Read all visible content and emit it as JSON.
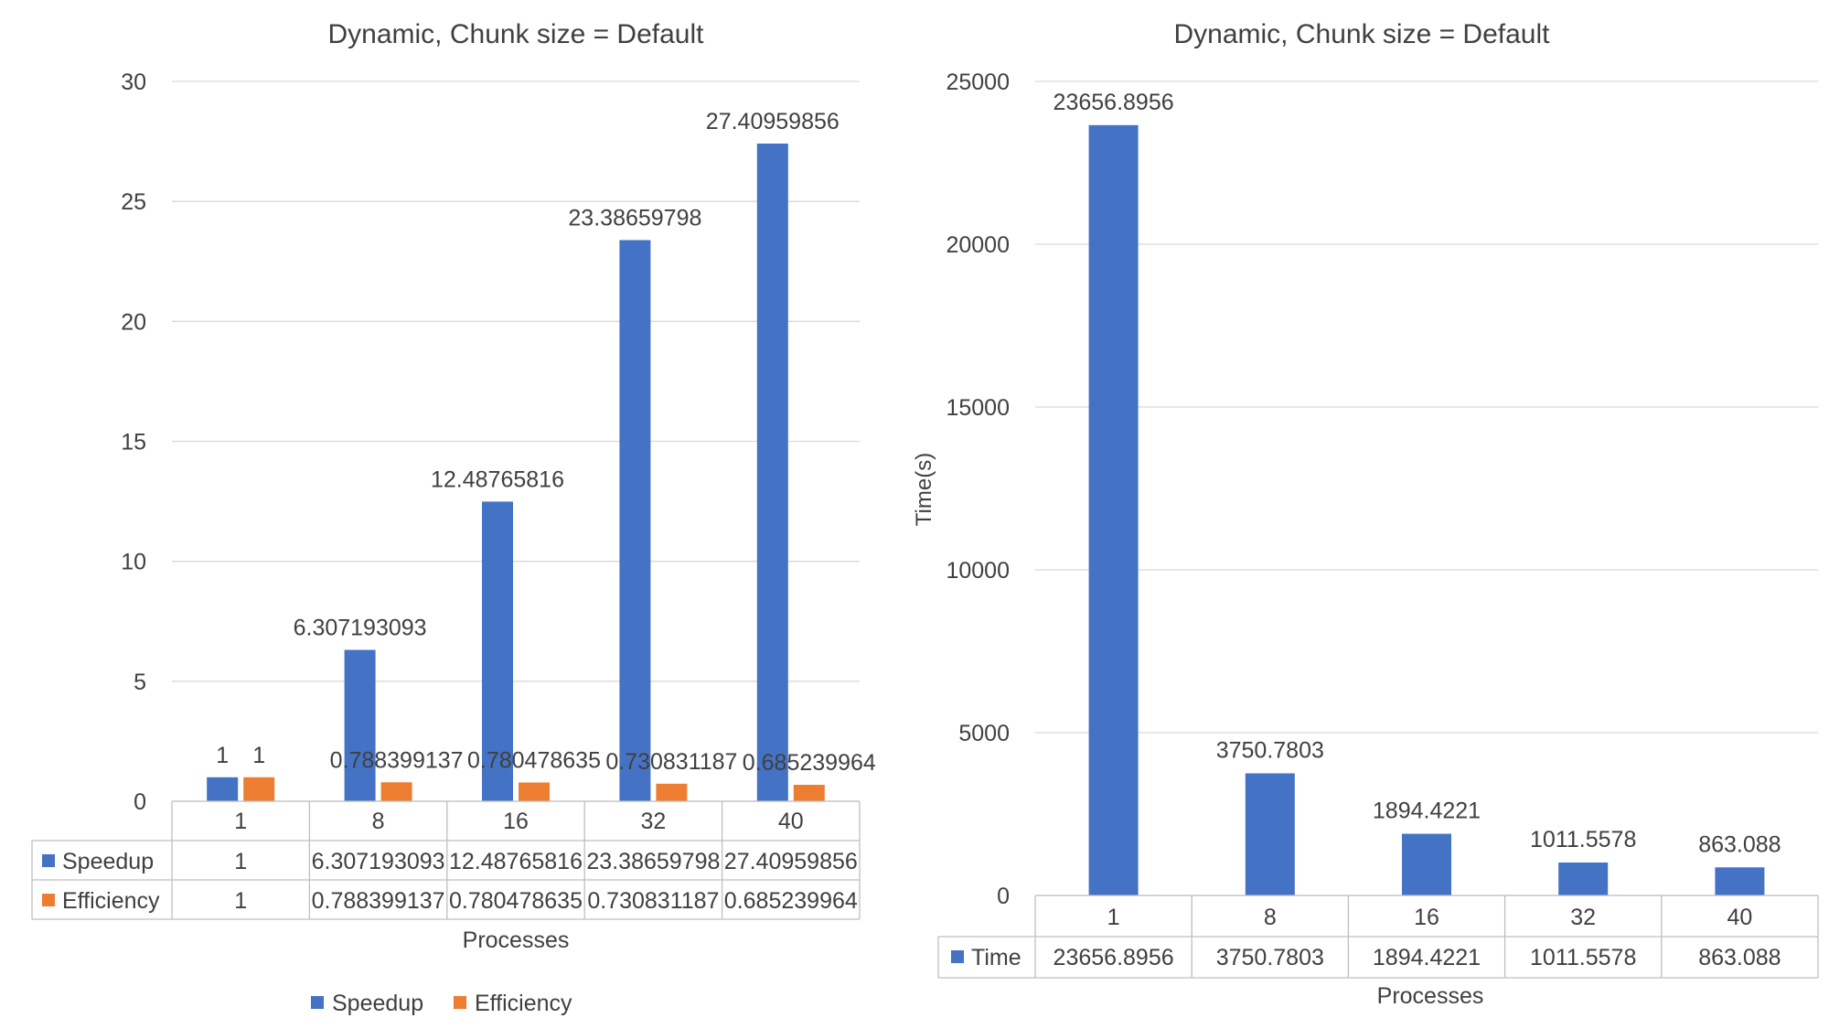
{
  "chart_data": [
    {
      "type": "bar",
      "title": "Dynamic, Chunk size = Default",
      "xlabel": "Processes",
      "ylabel": "",
      "categories": [
        "1",
        "8",
        "16",
        "32",
        "40"
      ],
      "ylim": [
        0,
        30
      ],
      "yticks": [
        0,
        5,
        10,
        15,
        20,
        25,
        30
      ],
      "grid": true,
      "legend": "bottom",
      "data_table": true,
      "series": [
        {
          "name": "Speedup",
          "color": "#4472C4",
          "values": [
            1,
            6.307193093,
            12.48765816,
            23.38659798,
            27.40959856
          ],
          "labels": [
            "1",
            "6.307193093",
            "12.48765816",
            "23.38659798",
            "27.40959856"
          ]
        },
        {
          "name": "Efficiency",
          "color": "#ED7D31",
          "values": [
            1,
            0.788399137,
            0.780478635,
            0.730831187,
            0.685239964
          ],
          "labels": [
            "1",
            "0.788399137",
            "0.780478635",
            "0.730831187",
            "0.685239964"
          ]
        }
      ]
    },
    {
      "type": "bar",
      "title": "Dynamic, Chunk size = Default",
      "xlabel": "Processes",
      "ylabel": "Time(s)",
      "categories": [
        "1",
        "8",
        "16",
        "32",
        "40"
      ],
      "ylim": [
        0,
        25000
      ],
      "yticks": [
        0,
        5000,
        10000,
        15000,
        20000,
        25000
      ],
      "grid": true,
      "legend": "none",
      "data_table": true,
      "series": [
        {
          "name": "Time",
          "color": "#4472C4",
          "values": [
            23656.8956,
            3750.7803,
            1894.4221,
            1011.5578,
            863.088
          ],
          "labels": [
            "23656.8956",
            "3750.7803",
            "1894.4221",
            "1011.5578",
            "863.088"
          ]
        }
      ]
    }
  ]
}
